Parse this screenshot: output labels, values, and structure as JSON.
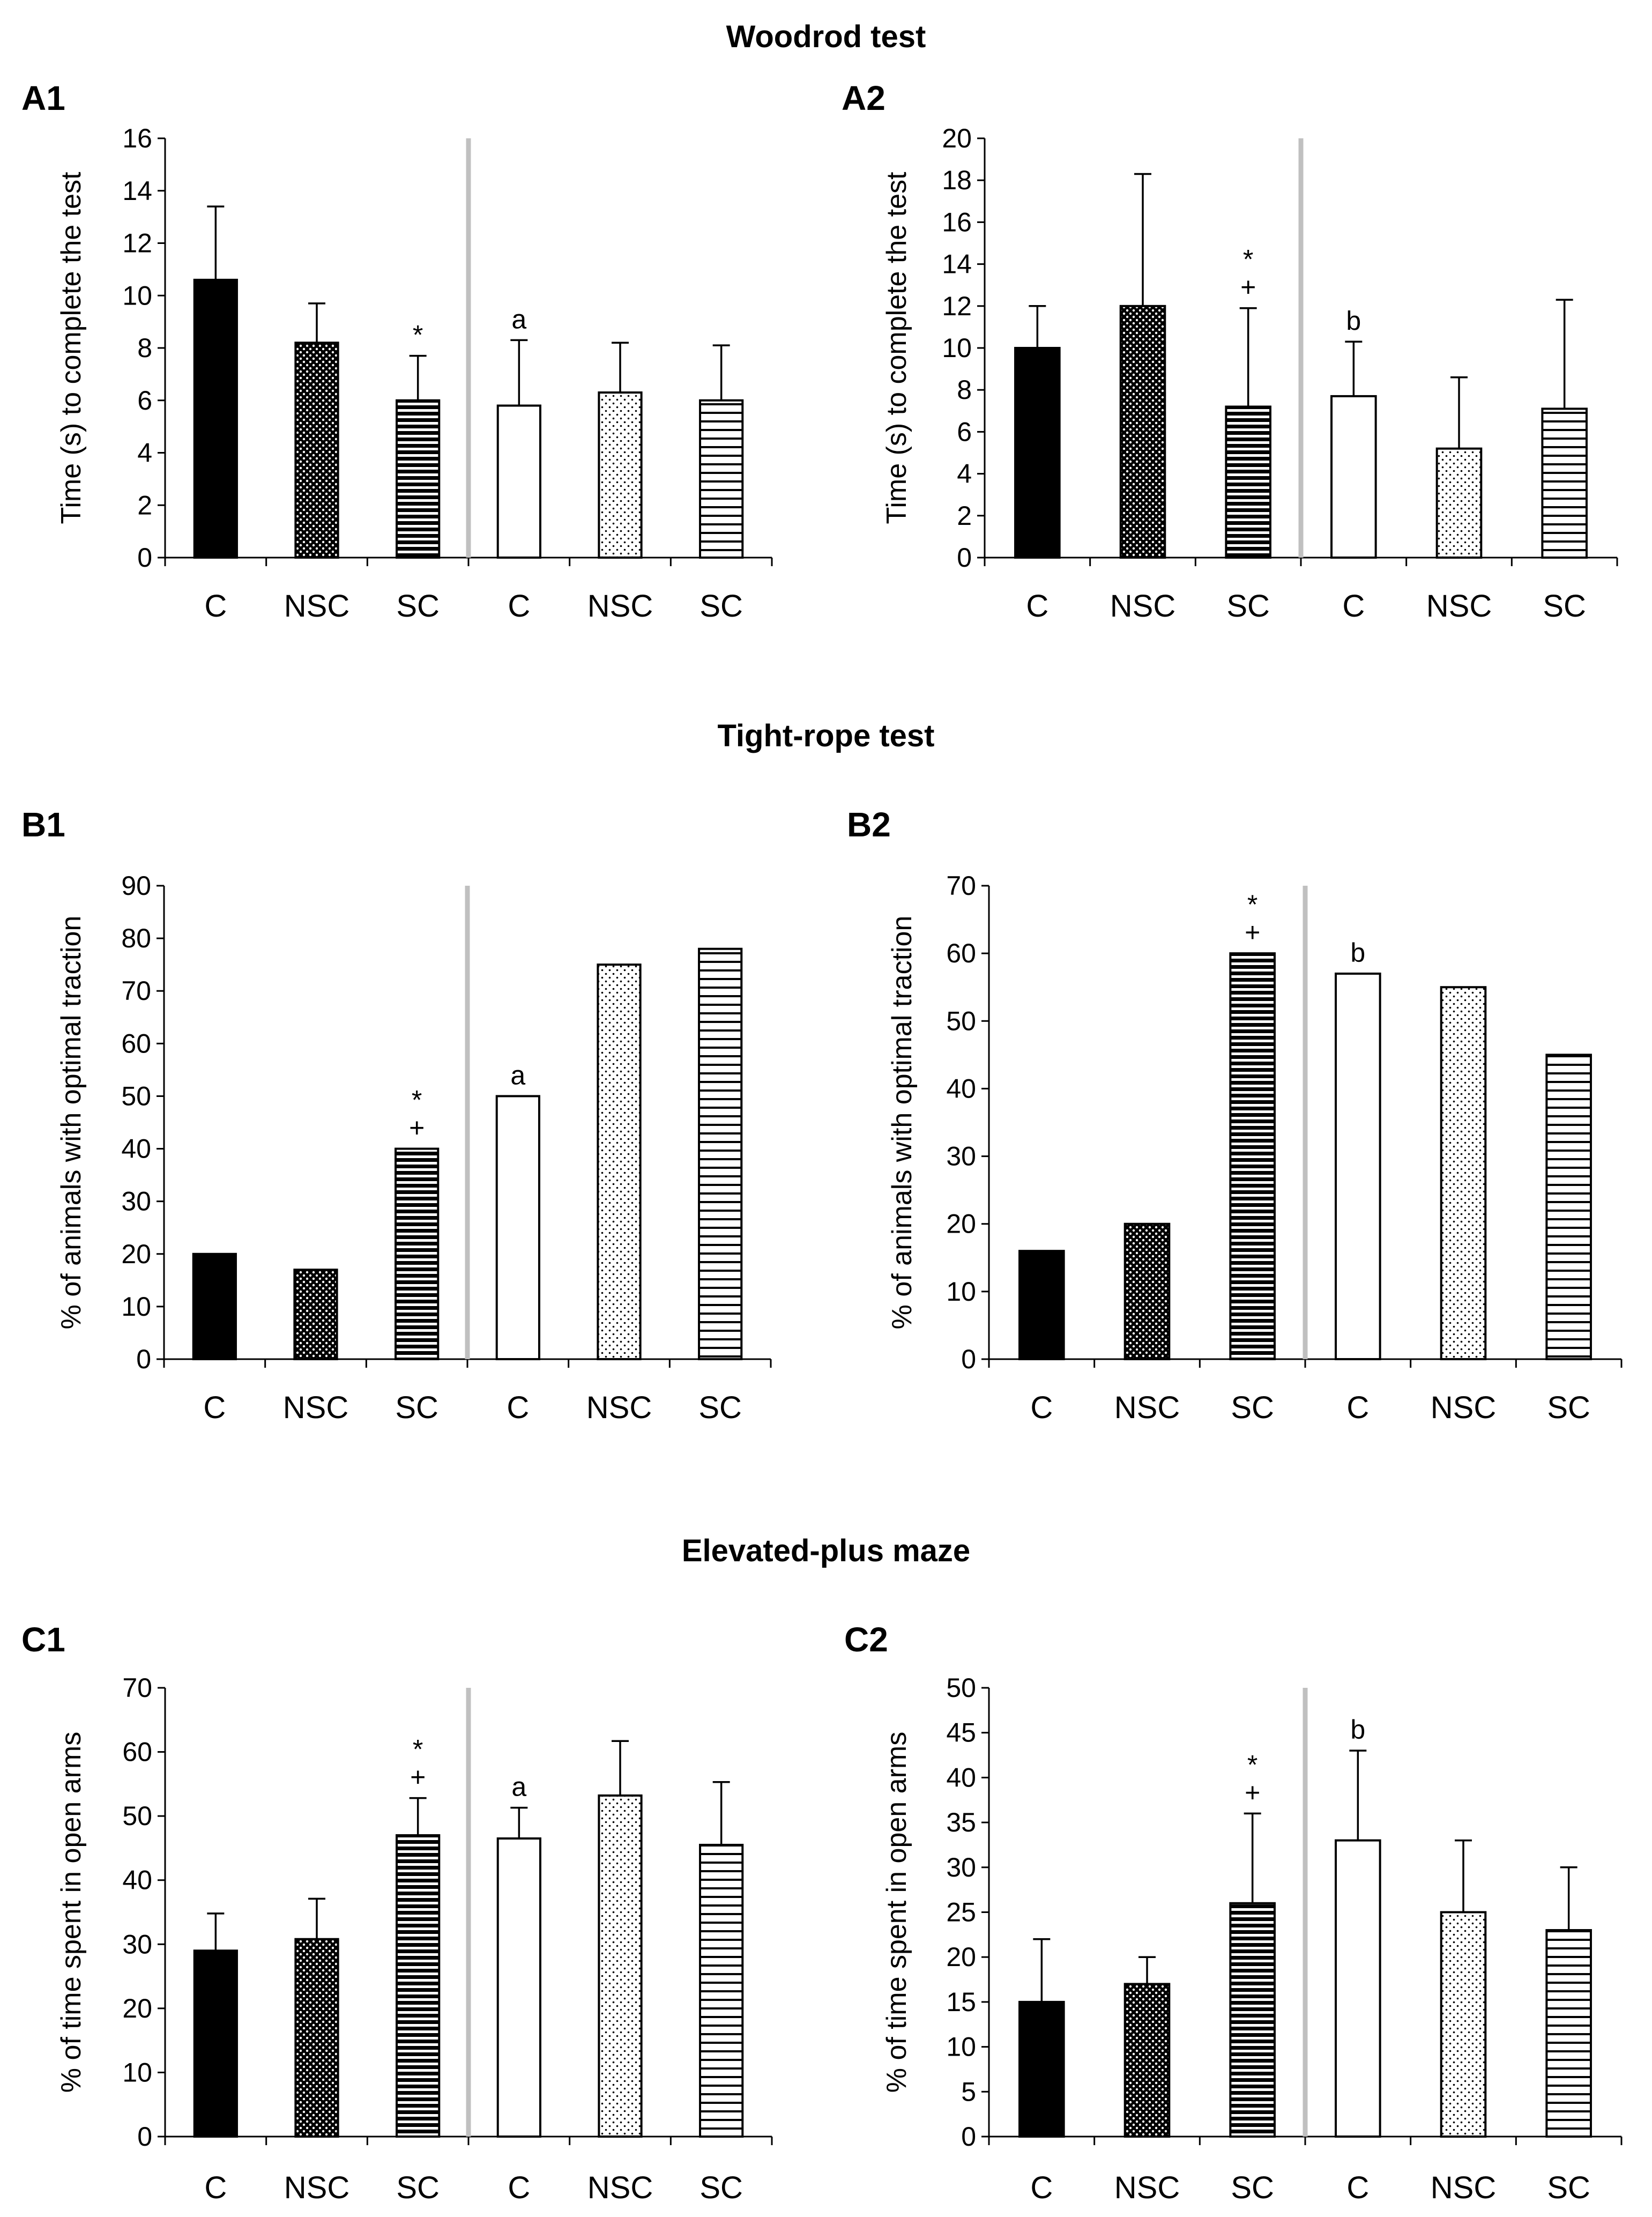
{
  "figure": {
    "sections": [
      "Woodrod test",
      "Tight-rope test",
      "Elevated-plus maze"
    ],
    "bar_styles": [
      "solid-black",
      "dense-dots",
      "horizontal-lines-dense",
      "open-white",
      "sparse-dots",
      "horizontal-lines-sparse"
    ],
    "colors": {
      "bar_fill_black": "#000000",
      "separator": "#c0c0c0",
      "axis": "#000000"
    }
  },
  "chart_data": [
    {
      "panel": "A1",
      "type": "bar",
      "section": "Woodrod test",
      "ylabel": "Time (s) to complete the test",
      "ylim": [
        0,
        16
      ],
      "ystep": 2,
      "categories": [
        "C",
        "NSC",
        "SC",
        "C",
        "NSC",
        "SC"
      ],
      "values": [
        10.6,
        8.2,
        6.0,
        5.8,
        6.3,
        6.0
      ],
      "errors": [
        2.8,
        1.5,
        1.7,
        2.5,
        1.9,
        2.1
      ],
      "annotations": [
        "",
        "",
        "*",
        "a",
        "",
        ""
      ]
    },
    {
      "panel": "A2",
      "type": "bar",
      "section": "Woodrod test",
      "ylabel": "Time (s) to complete the test",
      "ylim": [
        0,
        20
      ],
      "ystep": 2,
      "categories": [
        "C",
        "NSC",
        "SC",
        "C",
        "NSC",
        "SC"
      ],
      "values": [
        10.0,
        12.0,
        7.2,
        7.7,
        5.2,
        7.1
      ],
      "errors": [
        2.0,
        6.3,
        4.7,
        2.6,
        3.4,
        5.2
      ],
      "annotations": [
        "",
        "",
        "*\n+",
        "b",
        "",
        ""
      ]
    },
    {
      "panel": "B1",
      "type": "bar",
      "section": "Tight-rope test",
      "ylabel": "% of animals with optimal traction",
      "ylim": [
        0,
        90
      ],
      "ystep": 10,
      "categories": [
        "C",
        "NSC",
        "SC",
        "C",
        "NSC",
        "SC"
      ],
      "values": [
        20,
        17,
        40,
        50,
        75,
        78
      ],
      "errors": [
        0,
        0,
        0,
        0,
        0,
        0
      ],
      "annotations": [
        "",
        "",
        "*\n+",
        "a",
        "",
        ""
      ]
    },
    {
      "panel": "B2",
      "type": "bar",
      "section": "Tight-rope test",
      "ylabel": "% of animals with optimal traction",
      "ylim": [
        0,
        70
      ],
      "ystep": 10,
      "categories": [
        "C",
        "NSC",
        "SC",
        "C",
        "NSC",
        "SC"
      ],
      "values": [
        16,
        20,
        60,
        57,
        55,
        45
      ],
      "errors": [
        0,
        0,
        0,
        0,
        0,
        0
      ],
      "annotations": [
        "",
        "",
        "*\n+",
        "b",
        "",
        ""
      ]
    },
    {
      "panel": "C1",
      "type": "bar",
      "section": "Elevated-plus maze",
      "ylabel": "% of time spent in open arms",
      "ylim": [
        0,
        70
      ],
      "ystep": 10,
      "categories": [
        "C",
        "NSC",
        "SC",
        "C",
        "NSC",
        "SC"
      ],
      "values": [
        29,
        30.8,
        47,
        46.5,
        53.2,
        45.5
      ],
      "errors": [
        5.8,
        6.3,
        5.8,
        4.8,
        8.5,
        9.8
      ],
      "annotations": [
        "",
        "",
        "*\n+",
        "a",
        "",
        ""
      ]
    },
    {
      "panel": "C2",
      "type": "bar",
      "section": "Elevated-plus maze",
      "ylabel": "% of time spent in open arms",
      "ylim": [
        0,
        50
      ],
      "ystep": 5,
      "categories": [
        "C",
        "NSC",
        "SC",
        "C",
        "NSC",
        "SC"
      ],
      "values": [
        15,
        17,
        26,
        33,
        25,
        23
      ],
      "errors": [
        7,
        3,
        10,
        10,
        8,
        7
      ],
      "annotations": [
        "",
        "",
        "*\n+",
        "b",
        "",
        ""
      ]
    }
  ]
}
